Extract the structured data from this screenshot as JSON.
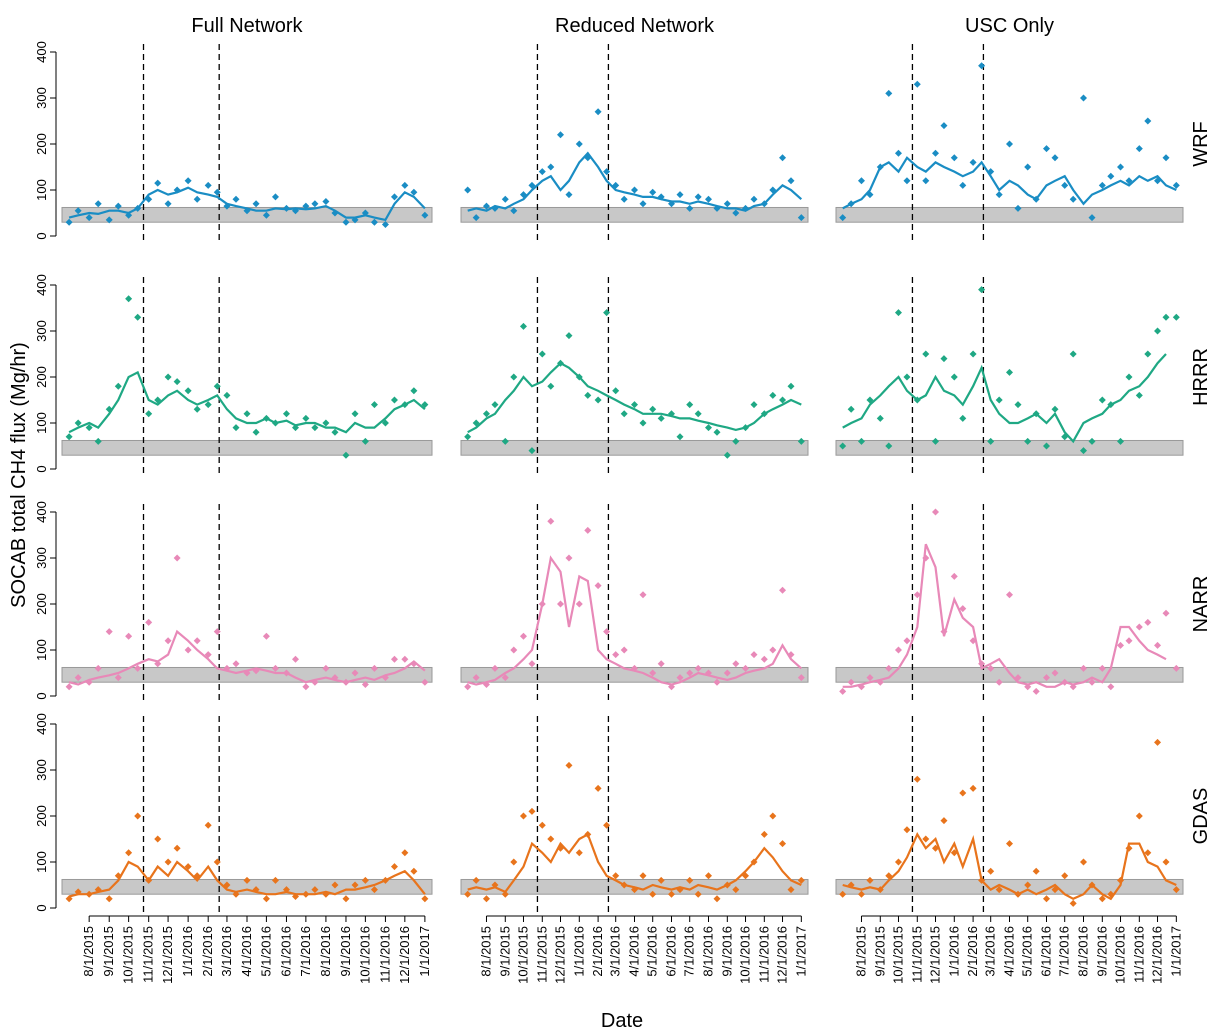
{
  "chart_data": {
    "type": "scatter",
    "y_label": "SOCAB total CH4 flux (Mg/hr)",
    "x_label": "Date",
    "columns": [
      "Full Network",
      "Reduced Network",
      "USC Only"
    ],
    "rows": [
      "WRF",
      "HRRR",
      "NARR",
      "GDAS"
    ],
    "x": [
      "7/1/2015",
      "7/15/2015",
      "8/1/2015",
      "8/15/2015",
      "9/1/2015",
      "9/15/2015",
      "10/1/2015",
      "10/15/2015",
      "11/1/2015",
      "11/15/2015",
      "12/1/2015",
      "12/15/2015",
      "1/1/2016",
      "1/15/2016",
      "2/1/2016",
      "2/15/2016",
      "3/1/2016",
      "3/15/2016",
      "4/1/2016",
      "4/15/2016",
      "5/1/2016",
      "5/15/2016",
      "6/1/2016",
      "6/15/2016",
      "7/1/2016",
      "7/15/2016",
      "8/1/2016",
      "8/15/2016",
      "9/1/2016",
      "9/15/2016",
      "10/1/2016",
      "10/15/2016",
      "11/1/2016",
      "11/15/2016",
      "12/1/2016",
      "12/15/2016",
      "1/1/2017"
    ],
    "xlim": [
      "6/20/2015",
      "1/12/2017"
    ],
    "xticks": [
      "8/1/2015",
      "9/1/2015",
      "10/1/2015",
      "11/1/2015",
      "12/1/2015",
      "1/1/2016",
      "2/1/2016",
      "3/1/2016",
      "4/1/2016",
      "5/1/2016",
      "6/1/2016",
      "7/1/2016",
      "8/1/2016",
      "9/1/2016",
      "10/1/2016",
      "11/1/2016",
      "12/1/2016",
      "1/1/2017"
    ],
    "ylim": [
      0,
      400
    ],
    "yticks": [
      0,
      100,
      200,
      300,
      400
    ],
    "band": [
      30,
      62
    ],
    "band_color": "#c8c8c8",
    "event_dates": [
      "10/24/2015",
      "2/18/2016"
    ],
    "panels": [
      {
        "color": "#1a8dc4",
        "points": [
          30,
          55,
          40,
          70,
          35,
          65,
          45,
          60,
          80,
          115,
          70,
          100,
          120,
          80,
          110,
          95,
          65,
          80,
          55,
          70,
          45,
          85,
          60,
          55,
          65,
          70,
          75,
          50,
          30,
          35,
          50,
          30,
          25,
          85,
          110,
          95,
          45
        ],
        "line": [
          40,
          45,
          50,
          48,
          55,
          55,
          50,
          60,
          90,
          100,
          90,
          95,
          105,
          95,
          90,
          85,
          70,
          65,
          60,
          55,
          55,
          60,
          58,
          60,
          58,
          60,
          65,
          55,
          40,
          40,
          45,
          40,
          35,
          70,
          95,
          85,
          60
        ]
      },
      {
        "color": "#1a8dc4",
        "points": [
          100,
          40,
          65,
          60,
          80,
          55,
          90,
          110,
          140,
          150,
          220,
          90,
          200,
          170,
          270,
          140,
          110,
          80,
          100,
          70,
          95,
          85,
          70,
          90,
          60,
          85,
          80,
          60,
          70,
          50,
          60,
          80,
          70,
          100,
          170,
          120,
          40
        ],
        "line": [
          55,
          60,
          55,
          65,
          60,
          70,
          80,
          100,
          120,
          130,
          100,
          120,
          160,
          180,
          150,
          120,
          100,
          95,
          90,
          85,
          85,
          80,
          75,
          75,
          70,
          75,
          70,
          65,
          60,
          60,
          55,
          65,
          70,
          90,
          110,
          100,
          80
        ]
      },
      {
        "color": "#1a8dc4",
        "points": [
          40,
          70,
          120,
          90,
          150,
          310,
          180,
          120,
          330,
          120,
          180,
          240,
          170,
          110,
          160,
          370,
          140,
          90,
          200,
          60,
          150,
          80,
          190,
          170,
          110,
          80,
          300,
          40,
          110,
          130,
          150,
          120,
          190,
          250,
          120,
          170,
          110
        ],
        "line": [
          60,
          70,
          80,
          100,
          150,
          160,
          140,
          170,
          150,
          140,
          160,
          150,
          140,
          130,
          140,
          160,
          130,
          100,
          120,
          110,
          90,
          80,
          110,
          120,
          130,
          100,
          70,
          90,
          100,
          110,
          120,
          110,
          130,
          120,
          130,
          110,
          100
        ]
      },
      {
        "color": "#1fa884",
        "points": [
          70,
          100,
          90,
          60,
          130,
          180,
          370,
          330,
          120,
          150,
          200,
          190,
          170,
          130,
          140,
          180,
          160,
          90,
          120,
          80,
          110,
          100,
          120,
          90,
          110,
          90,
          100,
          80,
          30,
          120,
          60,
          140,
          100,
          150,
          140,
          170,
          140
        ],
        "line": [
          80,
          90,
          100,
          90,
          120,
          150,
          200,
          210,
          150,
          140,
          160,
          170,
          150,
          140,
          150,
          160,
          130,
          110,
          100,
          100,
          110,
          100,
          105,
          95,
          100,
          100,
          90,
          90,
          80,
          100,
          90,
          90,
          110,
          130,
          140,
          150,
          130
        ]
      },
      {
        "color": "#1fa884",
        "points": [
          70,
          100,
          120,
          140,
          60,
          200,
          310,
          40,
          250,
          180,
          230,
          290,
          200,
          160,
          150,
          340,
          170,
          120,
          140,
          100,
          130,
          110,
          120,
          70,
          140,
          120,
          90,
          80,
          30,
          60,
          90,
          140,
          120,
          160,
          150,
          180,
          60
        ],
        "line": [
          80,
          90,
          110,
          120,
          150,
          170,
          200,
          180,
          190,
          210,
          230,
          220,
          200,
          180,
          170,
          160,
          150,
          140,
          130,
          120,
          120,
          120,
          115,
          110,
          110,
          105,
          100,
          95,
          90,
          85,
          90,
          100,
          120,
          130,
          140,
          150,
          140
        ]
      },
      {
        "color": "#1fa884",
        "points": [
          50,
          130,
          60,
          150,
          110,
          50,
          340,
          200,
          150,
          250,
          60,
          240,
          200,
          110,
          250,
          390,
          60,
          150,
          210,
          140,
          60,
          120,
          50,
          130,
          70,
          250,
          40,
          60,
          150,
          140,
          60,
          200,
          160,
          250,
          300,
          330,
          330
        ],
        "line": [
          90,
          100,
          110,
          140,
          160,
          180,
          200,
          170,
          150,
          160,
          200,
          170,
          160,
          140,
          180,
          220,
          150,
          120,
          100,
          100,
          110,
          120,
          100,
          120,
          80,
          60,
          100,
          110,
          120,
          140,
          150,
          170,
          180,
          200,
          230,
          250,
          null
        ]
      },
      {
        "color": "#e889b8",
        "points": [
          20,
          40,
          30,
          60,
          140,
          40,
          130,
          60,
          160,
          70,
          120,
          300,
          100,
          120,
          90,
          140,
          60,
          70,
          50,
          55,
          130,
          60,
          50,
          80,
          20,
          30,
          60,
          40,
          30,
          50,
          25,
          60,
          40,
          80,
          80,
          70,
          30
        ],
        "line": [
          30,
          25,
          35,
          40,
          45,
          50,
          60,
          70,
          80,
          75,
          90,
          140,
          120,
          100,
          80,
          60,
          55,
          50,
          55,
          60,
          55,
          50,
          50,
          40,
          30,
          35,
          40,
          35,
          30,
          35,
          40,
          35,
          45,
          50,
          60,
          75,
          55
        ]
      },
      {
        "color": "#e889b8",
        "points": [
          20,
          40,
          25,
          60,
          40,
          100,
          130,
          70,
          200,
          380,
          200,
          300,
          200,
          360,
          240,
          140,
          90,
          100,
          60,
          220,
          50,
          70,
          20,
          40,
          50,
          60,
          50,
          30,
          50,
          70,
          60,
          90,
          80,
          100,
          230,
          90,
          40
        ],
        "line": [
          30,
          25,
          30,
          35,
          50,
          60,
          80,
          100,
          200,
          300,
          270,
          150,
          260,
          250,
          100,
          80,
          70,
          60,
          55,
          50,
          40,
          30,
          25,
          30,
          40,
          50,
          45,
          40,
          35,
          40,
          50,
          55,
          60,
          70,
          110,
          80,
          60
        ]
      },
      {
        "color": "#e889b8",
        "points": [
          10,
          30,
          20,
          40,
          30,
          60,
          100,
          120,
          220,
          300,
          400,
          140,
          260,
          190,
          120,
          70,
          60,
          30,
          220,
          40,
          20,
          10,
          40,
          50,
          30,
          20,
          60,
          30,
          60,
          20,
          110,
          120,
          150,
          160,
          110,
          180,
          60
        ],
        "line": [
          20,
          20,
          25,
          30,
          35,
          40,
          60,
          90,
          150,
          330,
          280,
          130,
          210,
          170,
          150,
          60,
          70,
          80,
          50,
          30,
          25,
          30,
          20,
          20,
          30,
          25,
          30,
          40,
          30,
          60,
          150,
          150,
          120,
          100,
          90,
          80,
          null
        ]
      },
      {
        "color": "#e8741c",
        "points": [
          20,
          35,
          30,
          40,
          20,
          70,
          120,
          200,
          60,
          150,
          100,
          130,
          90,
          70,
          180,
          100,
          50,
          30,
          60,
          40,
          20,
          60,
          40,
          25,
          30,
          40,
          30,
          50,
          20,
          50,
          60,
          40,
          60,
          90,
          120,
          80,
          20
        ],
        "line": [
          25,
          30,
          30,
          35,
          40,
          60,
          100,
          90,
          60,
          90,
          70,
          100,
          80,
          60,
          90,
          60,
          40,
          35,
          40,
          35,
          30,
          30,
          35,
          30,
          30,
          30,
          35,
          30,
          40,
          40,
          45,
          50,
          60,
          70,
          80,
          60,
          30
        ]
      },
      {
        "color": "#e8741c",
        "points": [
          30,
          60,
          20,
          50,
          30,
          100,
          200,
          210,
          180,
          150,
          130,
          310,
          120,
          160,
          260,
          180,
          70,
          50,
          40,
          70,
          30,
          60,
          30,
          40,
          60,
          30,
          70,
          20,
          50,
          40,
          70,
          100,
          160,
          200,
          140,
          40,
          60
        ],
        "line": [
          40,
          45,
          40,
          45,
          35,
          60,
          90,
          140,
          120,
          100,
          140,
          120,
          150,
          160,
          100,
          70,
          60,
          50,
          45,
          40,
          50,
          45,
          40,
          45,
          40,
          50,
          45,
          40,
          50,
          60,
          80,
          100,
          130,
          110,
          80,
          60,
          50
        ]
      },
      {
        "color": "#e8741c",
        "points": [
          30,
          50,
          30,
          60,
          40,
          70,
          100,
          170,
          280,
          150,
          130,
          190,
          120,
          250,
          260,
          60,
          80,
          40,
          140,
          30,
          50,
          80,
          20,
          40,
          70,
          10,
          100,
          50,
          20,
          30,
          60,
          130,
          200,
          120,
          360,
          100,
          40
        ],
        "line": [
          50,
          45,
          40,
          45,
          40,
          60,
          80,
          110,
          160,
          130,
          150,
          100,
          140,
          90,
          150,
          60,
          40,
          50,
          40,
          30,
          40,
          30,
          40,
          50,
          30,
          20,
          30,
          50,
          30,
          20,
          50,
          140,
          140,
          100,
          90,
          60,
          50
        ]
      }
    ]
  }
}
